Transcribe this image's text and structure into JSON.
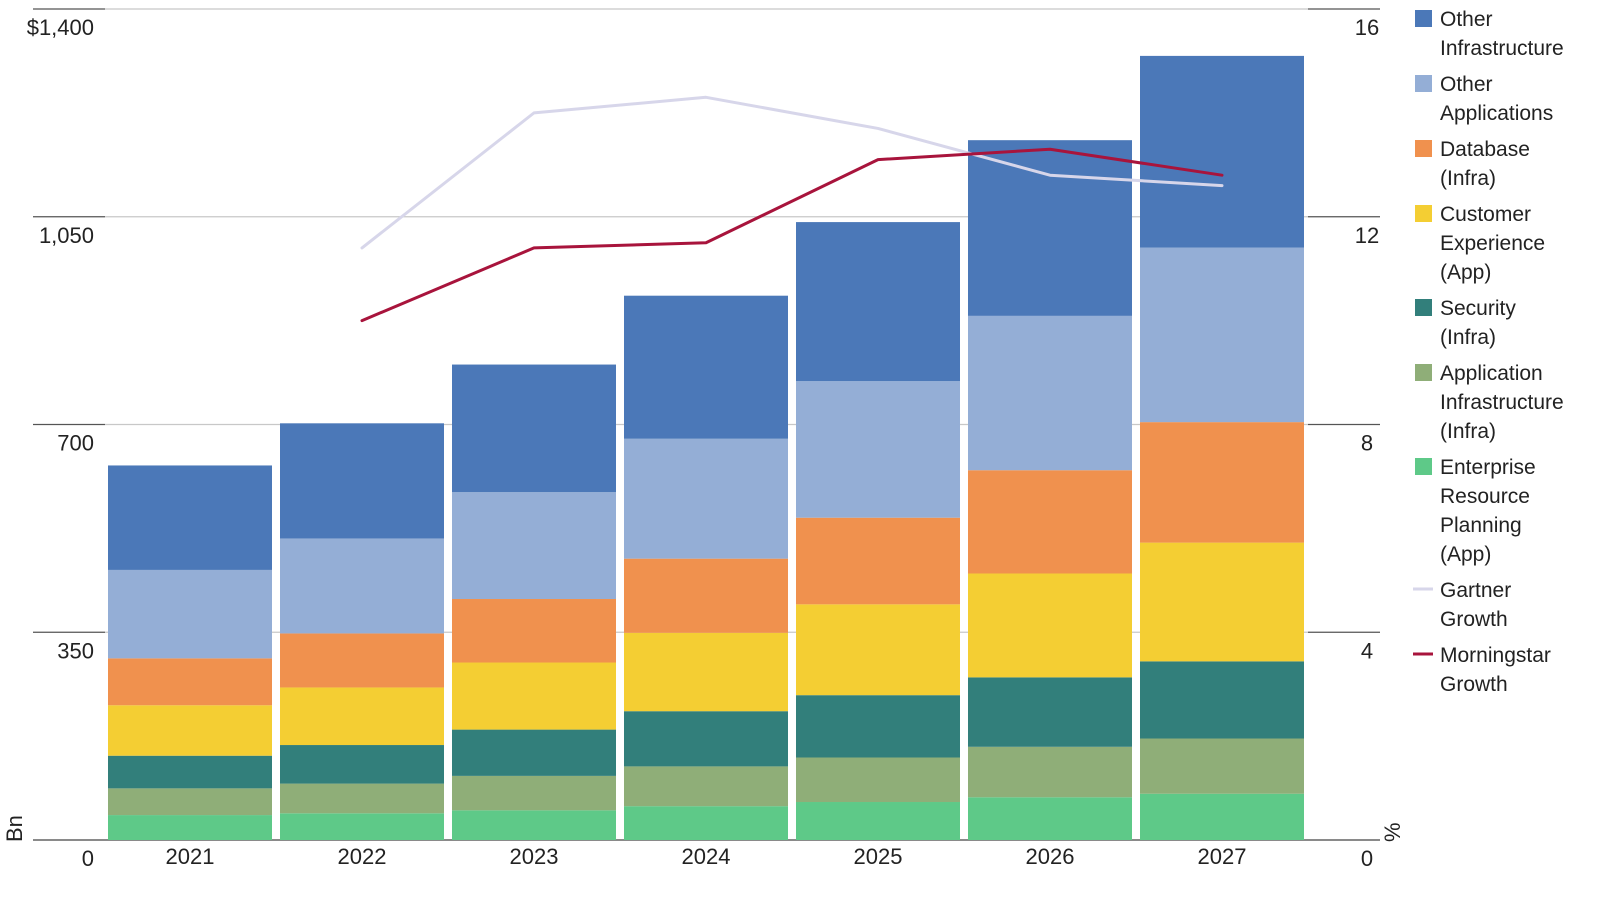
{
  "chart_data": {
    "type": "bar",
    "stacked": true,
    "categories": [
      "2021",
      "2022",
      "2023",
      "2024",
      "2025",
      "2026",
      "2027"
    ],
    "y_left": {
      "label": "Bn",
      "ylim": [
        0,
        1400
      ],
      "ticks": [
        0,
        350,
        700,
        1050,
        1400
      ],
      "tick_labels": [
        "0",
        "350",
        "700",
        "1,050",
        "$1,400"
      ]
    },
    "y_right": {
      "label": "%",
      "ylim": [
        0,
        16
      ],
      "ticks": [
        0,
        4,
        8,
        12,
        16
      ],
      "tick_labels": [
        "0",
        "4",
        "8",
        "12",
        "16"
      ]
    },
    "grid": true,
    "legend_position": "right",
    "series": [
      {
        "name": "Enterprise Resource Planning (App)",
        "legend_lines": [
          "Enterprise",
          "Resource",
          "Planning",
          "(App)"
        ],
        "color": "#5EC988",
        "values": [
          42,
          45,
          50,
          57,
          64,
          72,
          78
        ]
      },
      {
        "name": "Application Infrastructure (Infra)",
        "legend_lines": [
          "Application",
          "Infrastructure",
          "(Infra)"
        ],
        "color": "#8FAE78",
        "values": [
          45,
          50,
          58,
          67,
          75,
          85,
          93
        ]
      },
      {
        "name": "Security (Infra)",
        "legend_lines": [
          "Security",
          "(Infra)"
        ],
        "color": "#327F7B",
        "values": [
          55,
          65,
          78,
          93,
          105,
          117,
          130
        ]
      },
      {
        "name": "Customer Experience (App)",
        "legend_lines": [
          "Customer",
          "Experience",
          "(App)"
        ],
        "color": "#F4CE33",
        "values": [
          85,
          97,
          113,
          132,
          153,
          175,
          200
        ]
      },
      {
        "name": "Database (Infra)",
        "legend_lines": [
          "Database",
          "(Infra)"
        ],
        "color": "#F0914E",
        "values": [
          79,
          91,
          107,
          125,
          146,
          174,
          203
        ]
      },
      {
        "name": "Other Applications",
        "legend_lines": [
          "Other",
          "Applications"
        ],
        "color": "#94AED6",
        "values": [
          149,
          160,
          180,
          202,
          230,
          260,
          294
        ]
      },
      {
        "name": "Other Infrastructure",
        "legend_lines": [
          "Other",
          "Infrastructure"
        ],
        "color": "#4B78B8",
        "values": [
          176,
          194,
          215,
          241,
          268,
          296,
          323
        ]
      }
    ],
    "lines": [
      {
        "name": "Gartner Growth",
        "legend_lines": [
          "Gartner",
          "Growth"
        ],
        "color": "#D7D6EA",
        "axis": "right",
        "values": [
          null,
          11.4,
          14.0,
          14.3,
          13.7,
          12.8,
          12.6
        ]
      },
      {
        "name": "Morningstar Growth",
        "legend_lines": [
          "Morningstar",
          "Growth"
        ],
        "color": "#A8143C",
        "axis": "right",
        "values": [
          null,
          10.0,
          11.4,
          11.5,
          13.1,
          13.3,
          12.8
        ]
      }
    ]
  }
}
